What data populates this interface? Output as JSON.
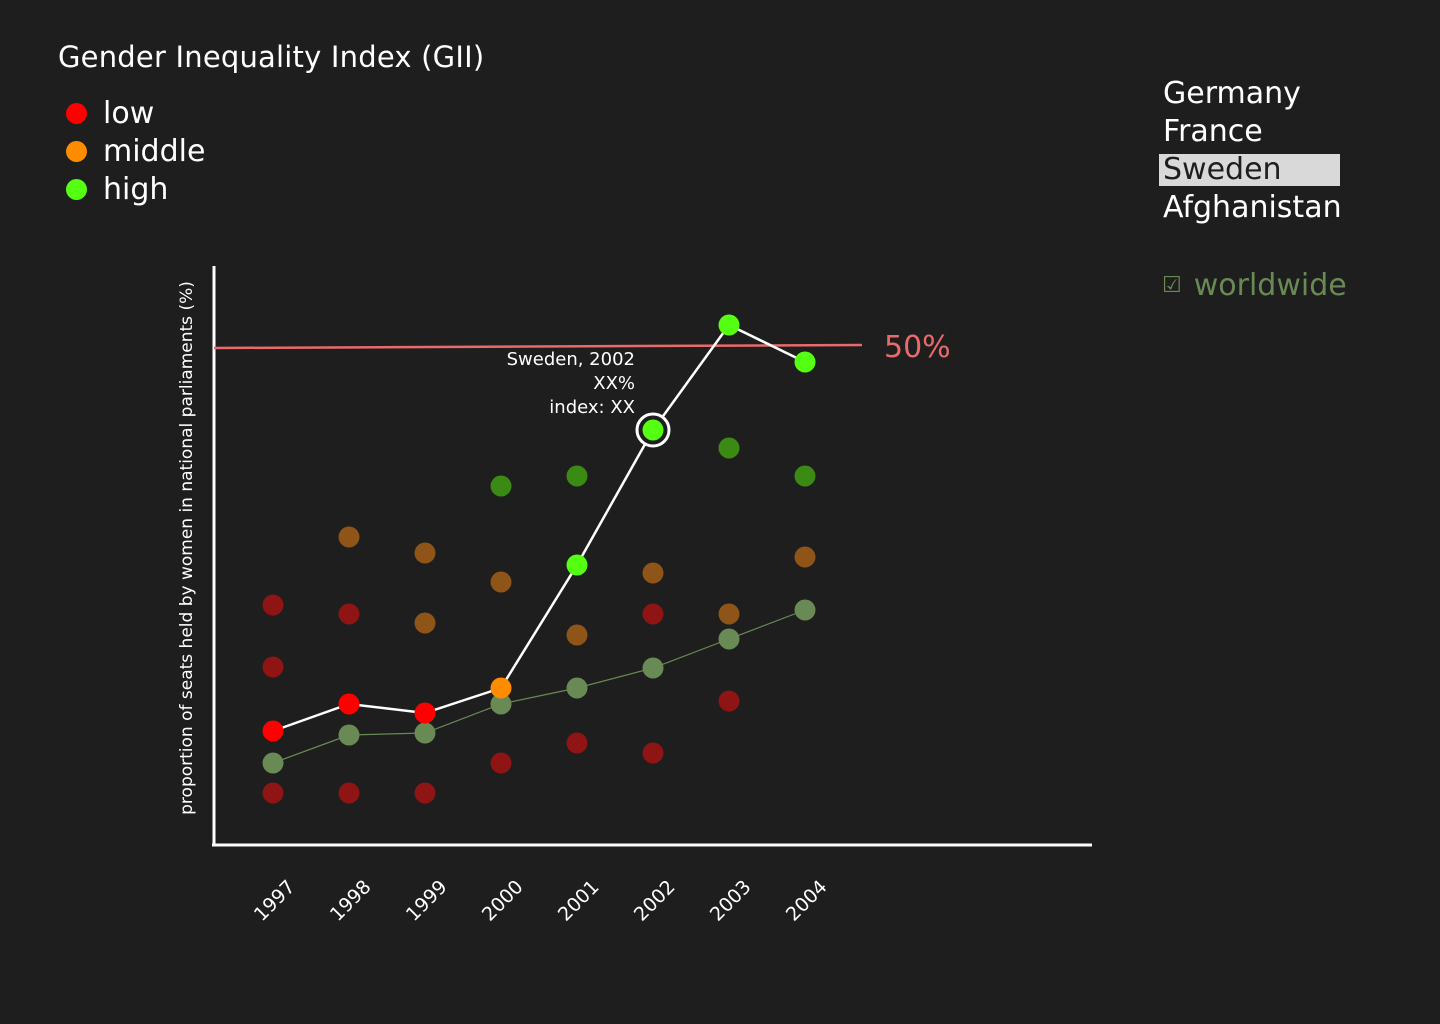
{
  "legend": {
    "title": "Gender Inequality Index (GII)",
    "items": [
      {
        "label": "low",
        "color": "#ff0000"
      },
      {
        "label": "middle",
        "color": "#ff8c00"
      },
      {
        "label": "high",
        "color": "#55ff11"
      }
    ]
  },
  "countries": {
    "items": [
      {
        "label": "Germany",
        "selected": false
      },
      {
        "label": "France",
        "selected": false
      },
      {
        "label": "Sweden",
        "selected": true
      },
      {
        "label": "Afghanistan",
        "selected": false
      }
    ]
  },
  "worldwide": {
    "label": "worldwide",
    "checkbox": "☑",
    "checked": true,
    "color": "#6a8a55"
  },
  "colors": {
    "background": "#1e1e1e",
    "low_faded": "#8f1414",
    "middle_faded": "#8f5418",
    "high_faded": "#3a8a14",
    "worldwide": "#6a8a55",
    "selected_line": "#ffffff",
    "reference_line": "#e86a6a"
  },
  "chart_data": {
    "type": "scatter",
    "title": "Gender Inequality Index (GII)",
    "ylabel": "proportion of seats held by women in national parliaments (%)",
    "xlabel": "",
    "categories": [
      "1997",
      "1998",
      "1999",
      "2000",
      "2001",
      "2002",
      "2003",
      "2004"
    ],
    "ylim": [
      0,
      56
    ],
    "grid": false,
    "reference_line": {
      "value": 50,
      "label": "50%"
    },
    "tooltip": {
      "lines": [
        "Sweden, 2002",
        "XX%",
        "index: XX"
      ],
      "year": "2002"
    },
    "selected_series": {
      "name": "Sweden",
      "values": [
        11.5,
        14.2,
        13.3,
        15.8,
        28.1,
        41.6,
        52.1,
        48.4
      ],
      "levels": [
        "low",
        "low",
        "low",
        "middle",
        "high",
        "high",
        "high",
        "high"
      ]
    },
    "worldwide_series": {
      "name": "worldwide",
      "values": [
        8.3,
        11.1,
        11.3,
        14.2,
        15.8,
        17.8,
        20.7,
        23.6
      ]
    },
    "background_points": [
      {
        "year": "1997",
        "level": "low",
        "value": 24.1
      },
      {
        "year": "1997",
        "level": "low",
        "value": 17.9
      },
      {
        "year": "1997",
        "level": "low",
        "value": 5.3
      },
      {
        "year": "1998",
        "level": "middle",
        "value": 30.9
      },
      {
        "year": "1998",
        "level": "low",
        "value": 23.2
      },
      {
        "year": "1998",
        "level": "low",
        "value": 5.3
      },
      {
        "year": "1999",
        "level": "middle",
        "value": 29.3
      },
      {
        "year": "1999",
        "level": "middle",
        "value": 22.3
      },
      {
        "year": "1999",
        "level": "low",
        "value": 5.3
      },
      {
        "year": "2000",
        "level": "high",
        "value": 36.0
      },
      {
        "year": "2000",
        "level": "middle",
        "value": 26.4
      },
      {
        "year": "2000",
        "level": "low",
        "value": 8.3
      },
      {
        "year": "2001",
        "level": "high",
        "value": 37.0
      },
      {
        "year": "2001",
        "level": "middle",
        "value": 21.1
      },
      {
        "year": "2001",
        "level": "low",
        "value": 10.3
      },
      {
        "year": "2002",
        "level": "middle",
        "value": 27.3
      },
      {
        "year": "2002",
        "level": "low",
        "value": 23.2
      },
      {
        "year": "2002",
        "level": "low",
        "value": 9.3
      },
      {
        "year": "2003",
        "level": "high",
        "value": 39.8
      },
      {
        "year": "2003",
        "level": "middle",
        "value": 23.2
      },
      {
        "year": "2003",
        "level": "low",
        "value": 14.5
      },
      {
        "year": "2004",
        "level": "high",
        "value": 37.0
      },
      {
        "year": "2004",
        "level": "middle",
        "value": 28.9
      }
    ]
  }
}
